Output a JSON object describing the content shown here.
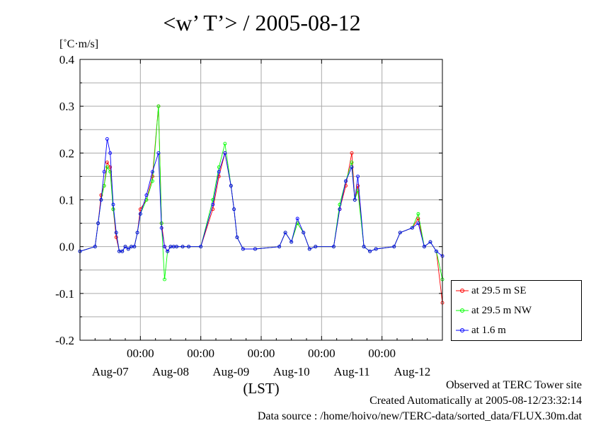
{
  "chart_data": {
    "type": "line",
    "title": "<w’ T’> / 2005-08-12",
    "ylabel": "[˚C·m/s]",
    "xlabel": "(LST)",
    "ylim": [
      -0.2,
      0.4
    ],
    "yticks": [
      "0.4",
      "0.3",
      "0.2",
      "0.1",
      "0.0",
      "-0.1",
      "-0.2"
    ],
    "xlim_days": [
      0,
      6
    ],
    "x_time_labels": [
      "00:00",
      "00:00",
      "00:00",
      "00:00",
      "00:00"
    ],
    "x_date_labels": [
      "Aug-07",
      "Aug-08",
      "Aug-09",
      "Aug-10",
      "Aug-11",
      "Aug-12"
    ],
    "grid": true,
    "legend_position": "bottom-right outside",
    "series": [
      {
        "name": "at 29.5 m SE",
        "color": "#ff0000",
        "x": [
          0.0,
          0.25,
          0.3,
          0.35,
          0.4,
          0.45,
          0.5,
          0.55,
          0.6,
          0.65,
          0.7,
          0.75,
          0.8,
          0.85,
          0.9,
          0.95,
          1.0,
          1.1,
          1.2,
          1.3,
          1.35,
          1.4,
          1.45,
          1.5,
          1.55,
          1.6,
          1.7,
          1.8,
          2.0,
          2.2,
          2.3,
          2.4,
          2.5,
          2.55,
          2.6,
          2.7,
          2.9,
          3.3,
          3.4,
          3.5,
          3.6,
          3.7,
          3.8,
          3.9,
          4.2,
          4.3,
          4.4,
          4.5,
          4.55,
          4.6,
          4.7,
          4.8,
          4.9,
          5.2,
          5.3,
          5.5,
          5.6,
          5.7,
          5.8,
          5.9,
          6.0
        ],
        "y": [
          -0.01,
          0.0,
          0.05,
          0.11,
          0.13,
          0.18,
          0.17,
          0.08,
          0.02,
          -0.01,
          -0.01,
          0.0,
          -0.005,
          0.0,
          0.0,
          0.03,
          0.08,
          0.1,
          0.15,
          0.3,
          0.05,
          0.0,
          -0.01,
          0.0,
          0.0,
          0.0,
          0.0,
          0.0,
          0.0,
          0.08,
          0.15,
          0.2,
          0.13,
          0.08,
          0.02,
          -0.005,
          -0.005,
          0.0,
          0.03,
          0.01,
          0.05,
          0.03,
          -0.005,
          0.0,
          0.0,
          0.08,
          0.13,
          0.2,
          0.1,
          0.13,
          0.0,
          -0.01,
          -0.005,
          0.0,
          0.03,
          0.04,
          0.06,
          0.0,
          0.01,
          -0.01,
          -0.12
        ]
      },
      {
        "name": "at 29.5 m NW",
        "color": "#00ff00",
        "x": [
          0.0,
          0.25,
          0.3,
          0.35,
          0.4,
          0.45,
          0.5,
          0.55,
          0.6,
          0.65,
          0.7,
          0.75,
          0.8,
          0.85,
          0.9,
          0.95,
          1.0,
          1.1,
          1.2,
          1.3,
          1.35,
          1.4,
          1.45,
          1.5,
          1.55,
          1.6,
          1.7,
          1.8,
          2.0,
          2.2,
          2.3,
          2.4,
          2.5,
          2.55,
          2.6,
          2.7,
          2.9,
          3.3,
          3.4,
          3.5,
          3.6,
          3.7,
          3.8,
          3.9,
          4.2,
          4.3,
          4.4,
          4.5,
          4.55,
          4.6,
          4.7,
          4.8,
          4.9,
          5.2,
          5.3,
          5.5,
          5.6,
          5.7,
          5.8,
          5.9,
          6.0
        ],
        "y": [
          -0.01,
          0.0,
          0.05,
          0.1,
          0.13,
          0.17,
          0.16,
          0.08,
          0.03,
          -0.01,
          -0.01,
          0.0,
          -0.005,
          0.0,
          0.0,
          0.03,
          0.07,
          0.1,
          0.14,
          0.3,
          0.05,
          -0.07,
          -0.01,
          0.0,
          0.0,
          0.0,
          0.0,
          0.0,
          0.0,
          0.1,
          0.17,
          0.22,
          0.13,
          0.08,
          0.02,
          -0.005,
          -0.005,
          0.0,
          0.03,
          0.01,
          0.05,
          0.03,
          -0.005,
          0.0,
          0.0,
          0.09,
          0.14,
          0.18,
          0.1,
          0.12,
          0.0,
          -0.01,
          -0.005,
          0.0,
          0.03,
          0.04,
          0.07,
          0.0,
          0.01,
          -0.01,
          -0.07
        ]
      },
      {
        "name": "at 1.6 m",
        "color": "#0000ff",
        "x": [
          0.0,
          0.25,
          0.3,
          0.35,
          0.4,
          0.45,
          0.5,
          0.55,
          0.6,
          0.65,
          0.7,
          0.75,
          0.8,
          0.85,
          0.9,
          0.95,
          1.0,
          1.1,
          1.2,
          1.3,
          1.35,
          1.4,
          1.45,
          1.5,
          1.55,
          1.6,
          1.7,
          1.8,
          2.0,
          2.2,
          2.3,
          2.4,
          2.5,
          2.55,
          2.6,
          2.7,
          2.9,
          3.3,
          3.4,
          3.5,
          3.6,
          3.7,
          3.8,
          3.9,
          4.2,
          4.3,
          4.4,
          4.5,
          4.55,
          4.6,
          4.7,
          4.8,
          4.9,
          5.2,
          5.3,
          5.5,
          5.6,
          5.7,
          5.8,
          5.9,
          6.0
        ],
        "y": [
          -0.01,
          0.0,
          0.05,
          0.1,
          0.16,
          0.23,
          0.2,
          0.09,
          0.03,
          -0.01,
          -0.01,
          0.0,
          -0.005,
          0.0,
          0.0,
          0.03,
          0.07,
          0.11,
          0.16,
          0.2,
          0.04,
          0.0,
          -0.01,
          0.0,
          0.0,
          0.0,
          0.0,
          0.0,
          0.0,
          0.09,
          0.16,
          0.2,
          0.13,
          0.08,
          0.02,
          -0.005,
          -0.005,
          0.0,
          0.03,
          0.01,
          0.06,
          0.03,
          -0.005,
          0.0,
          0.0,
          0.08,
          0.14,
          0.17,
          0.1,
          0.15,
          0.0,
          -0.01,
          -0.005,
          0.0,
          0.03,
          0.04,
          0.05,
          0.0,
          0.01,
          -0.01,
          -0.02
        ]
      }
    ]
  },
  "credits": {
    "line1": "Observed at TERC Tower site",
    "line2": "Created Automatically at 2005-08-12/23:32:14",
    "line3": "Data source : /home/hoivo/new/TERC-data/sorted_data/FLUX.30m.dat"
  }
}
